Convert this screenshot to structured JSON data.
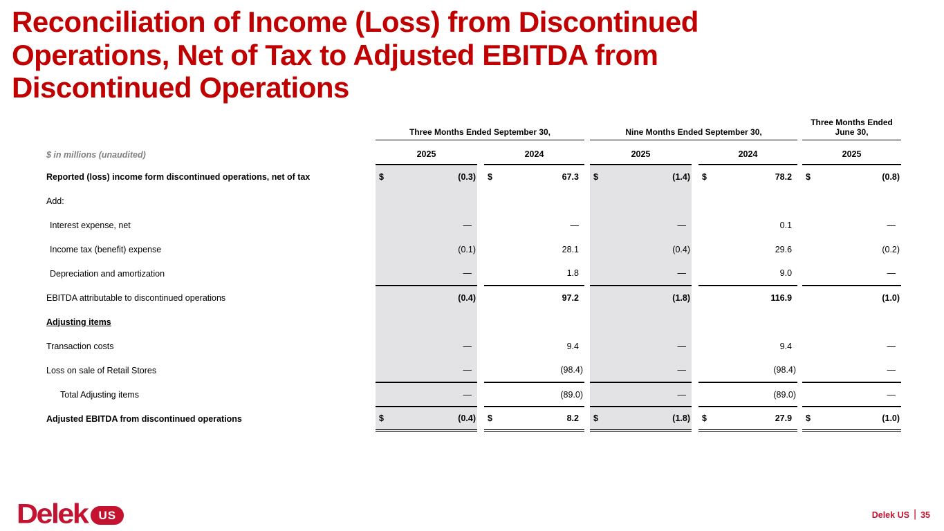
{
  "title_lines": [
    "Reconciliation of Income (Loss) from Discontinued",
    "Operations, Net of Tax to Adjusted EBITDA from",
    "Discontinued Operations"
  ],
  "colors": {
    "title_red": "#C00000",
    "logo_red": "#C41230",
    "shade_gray": "#E3E3E5",
    "note_gray": "#7F7F7F"
  },
  "table": {
    "note": "$ in millions (unaudited)",
    "currency_symbol": "$",
    "col_groups": [
      {
        "label": "Three Months Ended September 30,",
        "years": [
          "2025",
          "2024"
        ]
      },
      {
        "label": "Nine Months Ended September 30,",
        "years": [
          "2025",
          "2024"
        ]
      },
      {
        "label": "Three Months Ended June 30,",
        "years": [
          "2025"
        ]
      }
    ],
    "shaded_value_columns": [
      0,
      2
    ],
    "rows": [
      {
        "label": "Reported (loss) income form discontinued operations, net of tax",
        "bold": true,
        "dollar": true,
        "values": [
          "(0.3)",
          "67.3",
          "(1.4)",
          "78.2",
          "(0.8)"
        ]
      },
      {
        "label": "Add:",
        "values": [
          "",
          "",
          "",
          "",
          ""
        ]
      },
      {
        "label": "Interest expense, net",
        "indent": 1,
        "values": [
          "—",
          "—",
          "—",
          "0.1",
          "—"
        ]
      },
      {
        "label": "Income tax (benefit) expense",
        "indent": 1,
        "values": [
          "(0.1)",
          "28.1",
          "(0.4)",
          "29.6",
          "(0.2)"
        ]
      },
      {
        "label": "Depreciation and amortization",
        "indent": 1,
        "rule_below": true,
        "values": [
          "—",
          "1.8",
          "—",
          "9.0",
          "—"
        ]
      },
      {
        "label": "EBITDA attributable to discontinued operations",
        "bold_values": true,
        "values": [
          "(0.4)",
          "97.2",
          "(1.8)",
          "116.9",
          "(1.0)"
        ]
      },
      {
        "label": "Adjusting items",
        "bold": true,
        "underline_label": true,
        "values": [
          "",
          "",
          "",
          "",
          ""
        ]
      },
      {
        "label": "Transaction costs",
        "values": [
          "—",
          "9.4",
          "—",
          "9.4",
          "—"
        ]
      },
      {
        "label": "Loss on sale of Retail Stores",
        "rule_below": true,
        "values": [
          "—",
          "(98.4)",
          "—",
          "(98.4)",
          "—"
        ]
      },
      {
        "label": "Total Adjusting items",
        "indent": 2,
        "rule_below": true,
        "values": [
          "—",
          "(89.0)",
          "—",
          "(89.0)",
          "—"
        ]
      },
      {
        "label": "Adjusted EBITDA from discontinued operations",
        "bold": true,
        "dollar": true,
        "double_rule_below": true,
        "values": [
          "(0.4)",
          "8.2",
          "(1.8)",
          "27.9",
          "(1.0)"
        ]
      }
    ]
  },
  "footer": {
    "logo_text": "Delek",
    "logo_badge": "US",
    "page_label": "Delek US",
    "separator": "|",
    "page_number": "35"
  }
}
